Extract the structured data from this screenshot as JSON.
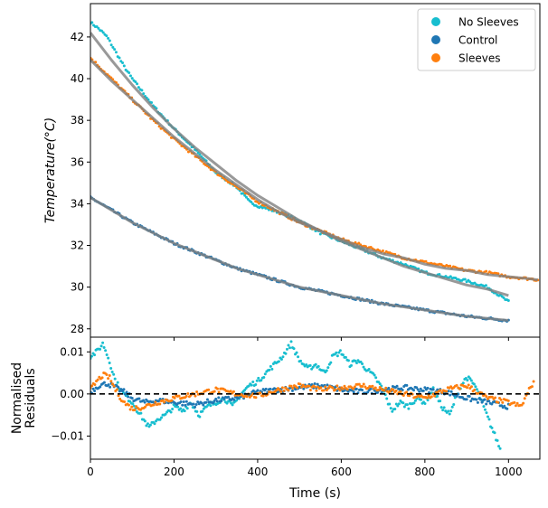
{
  "chart_data": [
    {
      "type": "scatter",
      "panel": "main",
      "ylabel": "Temperature(°C)",
      "xlim": [
        0,
        1075
      ],
      "ylim": [
        27.6,
        43.6
      ],
      "y_ticks": [
        28,
        30,
        32,
        34,
        36,
        38,
        40,
        42
      ],
      "grid": false,
      "legend": {
        "placement": "top-right",
        "entries": [
          "No Sleeves",
          "Control",
          "Sleeves"
        ]
      },
      "series": [
        {
          "name": "No Sleeves",
          "color": "#17becf",
          "x": [
            0,
            20,
            40,
            60,
            80,
            100,
            150,
            200,
            250,
            300,
            350,
            380,
            400,
            450,
            500,
            550,
            600,
            650,
            700,
            750,
            800,
            850,
            900,
            950,
            1000
          ],
          "y": [
            42.7,
            42.4,
            42.0,
            41.3,
            40.6,
            40.0,
            38.7,
            37.6,
            36.6,
            35.5,
            34.8,
            34.1,
            33.9,
            33.6,
            33.2,
            32.6,
            32.2,
            31.8,
            31.4,
            31.1,
            30.7,
            30.5,
            30.3,
            30.0,
            29.3
          ]
        },
        {
          "name": "No Sleeves fit",
          "color": "#7f7f7f",
          "x": [
            0,
            50,
            100,
            150,
            200,
            250,
            300,
            350,
            400,
            450,
            500,
            550,
            600,
            650,
            700,
            750,
            800,
            850,
            900,
            950,
            1000
          ],
          "y": [
            42.2,
            40.9,
            39.7,
            38.6,
            37.6,
            36.7,
            35.9,
            35.1,
            34.4,
            33.8,
            33.2,
            32.7,
            32.2,
            31.8,
            31.4,
            31.0,
            30.7,
            30.4,
            30.1,
            29.9,
            29.6
          ]
        },
        {
          "name": "Control",
          "color": "#1f77b4",
          "x": [
            0,
            50,
            100,
            150,
            200,
            250,
            300,
            350,
            400,
            450,
            500,
            550,
            600,
            650,
            700,
            750,
            800,
            850,
            900,
            950,
            1000
          ],
          "y": [
            34.3,
            33.7,
            33.1,
            32.6,
            32.1,
            31.7,
            31.3,
            30.9,
            30.6,
            30.3,
            30.0,
            29.8,
            29.6,
            29.4,
            29.2,
            29.05,
            28.9,
            28.75,
            28.6,
            28.5,
            28.4
          ]
        },
        {
          "name": "Control fit",
          "color": "#7f7f7f",
          "x": [
            0,
            50,
            100,
            150,
            200,
            250,
            300,
            350,
            400,
            450,
            500,
            550,
            600,
            650,
            700,
            750,
            800,
            850,
            900,
            950,
            1000
          ],
          "y": [
            34.3,
            33.7,
            33.1,
            32.6,
            32.1,
            31.7,
            31.3,
            30.9,
            30.6,
            30.3,
            30.0,
            29.8,
            29.6,
            29.4,
            29.2,
            29.05,
            28.9,
            28.75,
            28.6,
            28.5,
            28.4
          ]
        },
        {
          "name": "Sleeves",
          "color": "#ff7f0e",
          "x": [
            0,
            50,
            100,
            150,
            200,
            250,
            300,
            350,
            400,
            450,
            500,
            550,
            600,
            650,
            700,
            750,
            800,
            850,
            900,
            950,
            1000,
            1050,
            1070
          ],
          "y": [
            41.0,
            40.0,
            39.0,
            38.0,
            37.1,
            36.3,
            35.5,
            34.8,
            34.1,
            33.6,
            33.1,
            32.7,
            32.3,
            32.0,
            31.7,
            31.4,
            31.2,
            31.0,
            30.8,
            30.7,
            30.5,
            30.4,
            30.35
          ]
        },
        {
          "name": "Sleeves fit",
          "color": "#7f7f7f",
          "x": [
            0,
            50,
            100,
            150,
            200,
            250,
            300,
            350,
            400,
            450,
            500,
            550,
            600,
            650,
            700,
            750,
            800,
            850,
            900,
            950,
            1000,
            1050,
            1070
          ],
          "y": [
            40.9,
            39.9,
            39.0,
            38.1,
            37.2,
            36.4,
            35.6,
            34.9,
            34.2,
            33.6,
            33.1,
            32.7,
            32.3,
            31.9,
            31.6,
            31.4,
            31.1,
            30.9,
            30.8,
            30.6,
            30.5,
            30.4,
            30.35
          ]
        }
      ]
    },
    {
      "type": "scatter",
      "panel": "residuals",
      "ylabel": "Normalised\nResiduals",
      "xlabel": "Time (s)",
      "xlim": [
        0,
        1075
      ],
      "ylim": [
        -0.0155,
        0.0135
      ],
      "x_ticks": [
        0,
        200,
        400,
        600,
        800,
        1000
      ],
      "y_ticks": [
        -0.01,
        0.0,
        0.01
      ],
      "y_tick_labels": [
        "−0.01",
        "0.00",
        "0.01"
      ],
      "zero_line": true,
      "series": [
        {
          "name": "No Sleeves",
          "color": "#17becf",
          "x": [
            0,
            15,
            30,
            45,
            60,
            80,
            100,
            120,
            140,
            160,
            180,
            200,
            220,
            240,
            260,
            280,
            300,
            320,
            340,
            360,
            380,
            400,
            420,
            440,
            460,
            480,
            500,
            520,
            540,
            560,
            580,
            600,
            620,
            640,
            660,
            680,
            700,
            720,
            740,
            760,
            780,
            800,
            820,
            840,
            860,
            880,
            900,
            920,
            940,
            960,
            980
          ],
          "y": [
            0.009,
            0.01,
            0.012,
            0.008,
            0.003,
            0.0,
            -0.002,
            -0.005,
            -0.008,
            -0.006,
            -0.005,
            -0.003,
            -0.004,
            -0.002,
            -0.005,
            -0.003,
            -0.002,
            -0.001,
            -0.003,
            0.0,
            0.002,
            0.003,
            0.005,
            0.007,
            0.009,
            0.012,
            0.008,
            0.006,
            0.007,
            0.005,
            0.009,
            0.01,
            0.007,
            0.008,
            0.006,
            0.004,
            0.001,
            -0.004,
            -0.002,
            -0.003,
            -0.001,
            -0.002,
            0.001,
            -0.003,
            -0.005,
            0.001,
            0.004,
            0.002,
            -0.003,
            -0.008,
            -0.013
          ]
        },
        {
          "name": "Control",
          "color": "#1f77b4",
          "x": [
            0,
            20,
            40,
            60,
            80,
            100,
            130,
            160,
            200,
            250,
            300,
            350,
            400,
            450,
            500,
            550,
            600,
            650,
            700,
            750,
            800,
            850,
            900,
            950,
            1000
          ],
          "y": [
            0.0005,
            0.002,
            0.0025,
            0.0015,
            0.0005,
            -0.001,
            -0.002,
            -0.0015,
            -0.002,
            -0.0025,
            -0.0015,
            -0.001,
            0.0005,
            0.001,
            0.0015,
            0.002,
            0.001,
            0.0005,
            0.001,
            0.0015,
            0.001,
            0.0005,
            -0.001,
            -0.002,
            -0.003
          ]
        },
        {
          "name": "Sleeves",
          "color": "#ff7f0e",
          "x": [
            0,
            15,
            30,
            45,
            60,
            80,
            100,
            130,
            160,
            200,
            250,
            300,
            350,
            400,
            450,
            500,
            550,
            600,
            650,
            700,
            750,
            800,
            850,
            900,
            950,
            1000,
            1030,
            1060
          ],
          "y": [
            0.001,
            0.003,
            0.0045,
            0.004,
            0.001,
            -0.002,
            -0.0035,
            -0.003,
            -0.002,
            -0.001,
            0.0,
            0.001,
            0.0,
            -0.0005,
            0.001,
            0.002,
            0.001,
            0.0015,
            0.002,
            0.001,
            0.0,
            -0.001,
            0.001,
            0.002,
            -0.001,
            -0.002,
            -0.003,
            0.003
          ]
        }
      ]
    }
  ]
}
